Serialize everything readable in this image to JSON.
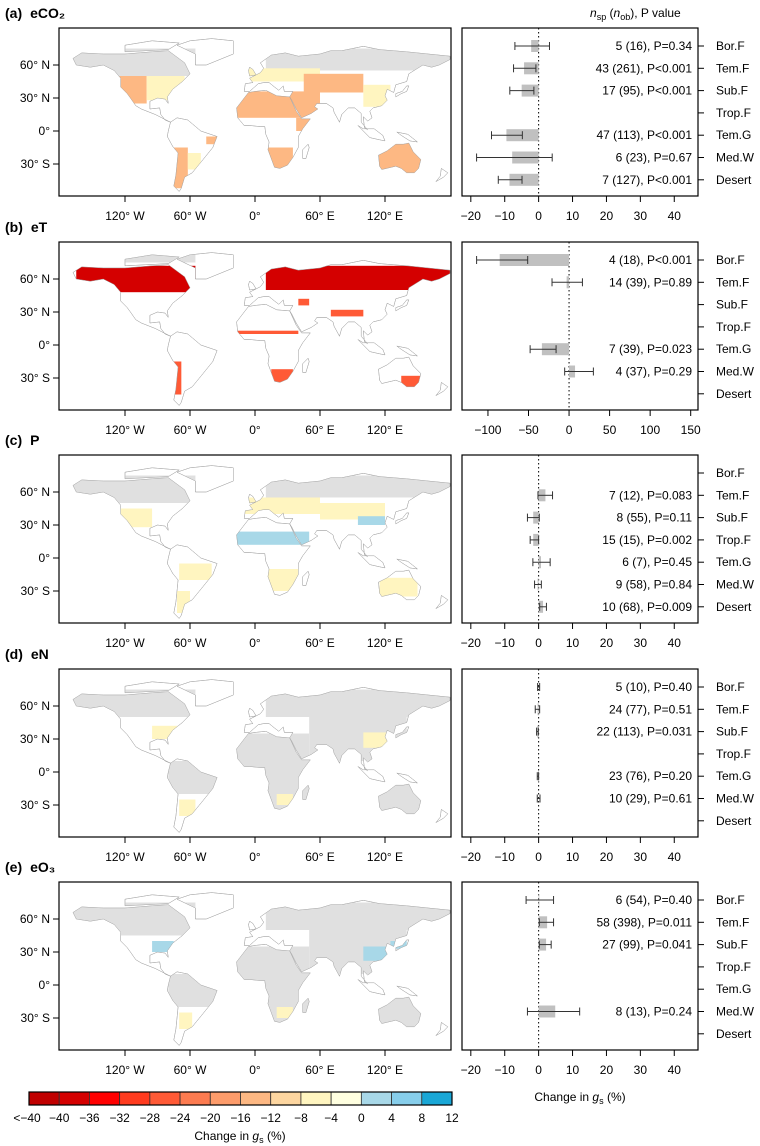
{
  "header": {
    "n": "n",
    "n_sub": "sp",
    "mid": " (",
    "n2": "n",
    "n2_sub": "ob",
    "suffix": "), P value"
  },
  "categories": [
    "Bor.F",
    "Tem.F",
    "Sub.F",
    "Trop.F",
    "Tem.G",
    "Med.W",
    "Desert"
  ],
  "map_axes": {
    "lat_ticks": [
      "60° N",
      "30° N",
      "0°",
      "30° S"
    ],
    "lat_values": [
      60,
      30,
      0,
      -30
    ],
    "lon_ticks": [
      "120° W",
      "60° W",
      "0°",
      "60° E",
      "120° E"
    ],
    "lon_values": [
      -120,
      -60,
      0,
      60,
      120
    ]
  },
  "panels": [
    {
      "tag": "(a)",
      "name": "eCO₂"
    },
    {
      "tag": "(b)",
      "name": "eT"
    },
    {
      "tag": "(c)",
      "name": "P"
    },
    {
      "tag": "(d)",
      "name": "eN"
    },
    {
      "tag": "(e)",
      "name": "eO₃"
    }
  ],
  "xlabel": {
    "prefix": "Change in ",
    "var": "g",
    "sub": "s",
    "suffix": " (%)"
  },
  "colorbar": {
    "labels": [
      "<−40",
      "−40",
      "−36",
      "−32",
      "−28",
      "−24",
      "−20",
      "−16",
      "−12",
      "−8",
      "−4",
      "0",
      "4",
      "8",
      "12"
    ],
    "colors": [
      "#c00000",
      "#d40000",
      "#ff0000",
      "#ff3b1f",
      "#ff5a36",
      "#fc7b50",
      "#fd9c6b",
      "#fdb883",
      "#fdd6a0",
      "#fff5c0",
      "#ffffe0",
      "#a8d8e8",
      "#87ceeb",
      "#1aa7d6"
    ],
    "no_data_color": "#e0e0e0"
  },
  "chart_data": [
    {
      "type": "bar",
      "panel": "(a) eCO₂",
      "xlim": [
        -22.6,
        47
      ],
      "xticks": [
        -20,
        -10,
        0,
        10,
        20,
        30,
        40
      ],
      "show_tick_labels": true,
      "mean": [
        -2.2,
        -4.3,
        -5.0,
        null,
        -9.5,
        -7.8,
        -8.6
      ],
      "ci_low": [
        -7.0,
        -7.4,
        -8.5,
        null,
        -13.9,
        -18.3,
        -11.9
      ],
      "ci_high": [
        3.2,
        -0.8,
        -1.4,
        null,
        -4.8,
        4.0,
        -4.9
      ],
      "annotations": [
        "5 (16), P=0.34",
        "43 (261), P<0.001",
        "17 (95), P<0.001",
        "",
        "47 (113), P<0.001",
        "6 (23), P=0.67",
        "7 (127), P<0.001"
      ]
    },
    {
      "type": "bar",
      "panel": "(b) eT",
      "xlim": [
        -132,
        159
      ],
      "xticks": [
        -100,
        -50,
        0,
        50,
        100,
        150
      ],
      "show_tick_labels": true,
      "mean": [
        -85.5,
        -3.0,
        null,
        null,
        -33.5,
        7.4,
        null
      ],
      "ci_low": [
        -114,
        -21,
        null,
        null,
        -48,
        -5.4,
        null
      ],
      "ci_high": [
        -51,
        16.5,
        null,
        null,
        -16,
        30,
        null
      ],
      "annotations": [
        "4 (18), P<0.001",
        "14 (39), P=0.89",
        "",
        "",
        "7 (39), P=0.023",
        "4 (37), P=0.29",
        ""
      ]
    },
    {
      "type": "bar",
      "panel": "(c) P",
      "xlim": [
        -22.6,
        47
      ],
      "xticks": [
        -20,
        -10,
        0,
        10,
        20,
        30,
        40
      ],
      "show_tick_labels": true,
      "mean": [
        null,
        2.0,
        -1.6,
        -1.6,
        0.7,
        -0.3,
        1.3
      ],
      "ci_low": [
        null,
        -0.2,
        -3.3,
        -2.5,
        -1.7,
        -1.2,
        0.3
      ],
      "ci_high": [
        null,
        4.1,
        0.2,
        0.0,
        3.4,
        0.8,
        2.3
      ],
      "annotations": [
        "",
        "7 (12), P=0.083",
        "8 (55), P=0.11",
        "15 (15), P=0.002",
        "6 (7), P=0.45",
        "9 (58), P=0.84",
        "10 (68), P=0.009"
      ]
    },
    {
      "type": "bar",
      "panel": "(d) eN",
      "xlim": [
        -22.6,
        47
      ],
      "xticks": [
        -20,
        -10,
        0,
        10,
        20,
        30,
        40
      ],
      "show_tick_labels": true,
      "mean": [
        0.0,
        -0.3,
        -0.4,
        null,
        -0.2,
        0.0,
        null
      ],
      "ci_low": [
        -0.3,
        -1.0,
        -0.6,
        null,
        -0.4,
        -0.4,
        null
      ],
      "ci_high": [
        0.3,
        0.3,
        -0.1,
        null,
        0.0,
        0.4,
        null
      ],
      "annotations": [
        "5 (10), P=0.40",
        "24 (77), P=0.51",
        "22 (113), P=0.031",
        "",
        "23 (76), P=0.20",
        "10 (29), P=0.61",
        ""
      ]
    },
    {
      "type": "bar",
      "panel": "(e) eO₃",
      "xlim": [
        -22.6,
        47
      ],
      "xticks": [
        -20,
        -10,
        0,
        10,
        20,
        30,
        40
      ],
      "show_tick_labels": true,
      "mean": [
        0.2,
        2.5,
        2.2,
        null,
        null,
        4.9,
        null
      ],
      "ci_low": [
        -3.7,
        0.2,
        0.2,
        null,
        null,
        -3.3,
        null
      ],
      "ci_high": [
        4.4,
        4.4,
        3.7,
        null,
        null,
        12.1,
        null
      ],
      "annotations": [
        "6 (54), P=0.40",
        "58 (398), P=0.011",
        "27 (99), P=0.041",
        "",
        "",
        "8 (13), P=0.24",
        ""
      ]
    }
  ]
}
